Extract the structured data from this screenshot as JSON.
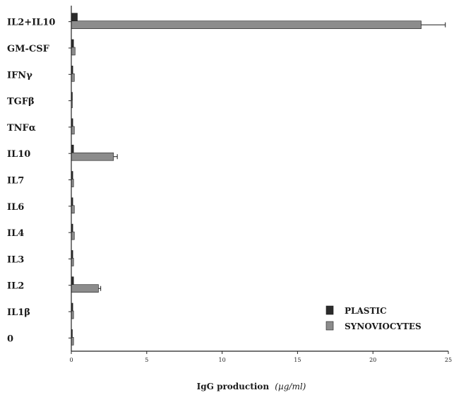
{
  "chart_data": {
    "type": "bar",
    "orientation": "horizontal",
    "categories": [
      "IL2+IL10",
      "GM-CSF",
      "IFNγ",
      "TGFβ",
      "TNFα",
      "IL10",
      "IL7",
      "IL6",
      "IL4",
      "IL3",
      "IL2",
      "IL1β",
      "0"
    ],
    "series": [
      {
        "name": "PLASTIC",
        "color": "#2b2b2b",
        "values": [
          0.4,
          0.15,
          0.1,
          0.05,
          0.1,
          0.15,
          0.1,
          0.1,
          0.1,
          0.1,
          0.15,
          0.1,
          0.05
        ],
        "errors": [
          0,
          0,
          0,
          0,
          0,
          0,
          0,
          0,
          0,
          0,
          0,
          0,
          0
        ]
      },
      {
        "name": "SYNOVIOCYTES",
        "color": "#8c8c8c",
        "values": [
          23.2,
          0.25,
          0.2,
          0.05,
          0.2,
          2.8,
          0.15,
          0.2,
          0.2,
          0.15,
          1.8,
          0.15,
          0.15
        ],
        "errors": [
          1.6,
          0,
          0,
          0,
          0,
          0.25,
          0,
          0,
          0,
          0,
          0.15,
          0,
          0
        ]
      }
    ],
    "xlabel": "IgG production",
    "xlabel_unit": "(µg/ml)",
    "xlim": [
      0,
      25
    ],
    "xticks": [
      "0",
      "5",
      "10",
      "15",
      "20",
      "25"
    ],
    "grid": false,
    "legend_position": "bottom-right"
  }
}
